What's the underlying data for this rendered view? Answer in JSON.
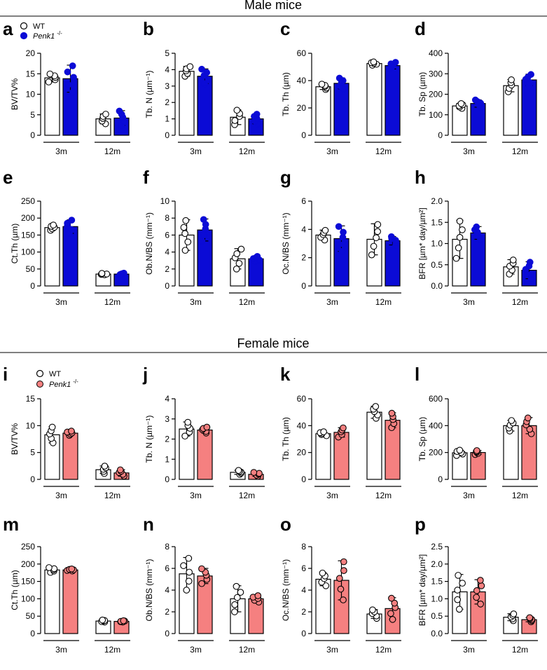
{
  "sections": [
    {
      "title": "Male mice"
    },
    {
      "title": "Female mice"
    }
  ],
  "legends": [
    {
      "wt_label": "WT",
      "ko_label": "Penk1",
      "ko_superscript": "-/-",
      "ko_color": "#0b0bd6"
    },
    {
      "wt_label": "WT",
      "ko_label": "Penk1",
      "ko_superscript": "-/-",
      "ko_color": "#f58080"
    }
  ],
  "group_labels": [
    "3m",
    "12m"
  ],
  "colors": {
    "wt": "#ffffff",
    "male_ko": "#0b0bd6",
    "female_ko": "#f58080",
    "axis": "#000000"
  },
  "chart_data": [
    {
      "letter": "a",
      "type": "bar",
      "ylabel": "BV/TV%",
      "ylim": [
        0,
        20
      ],
      "ticks": [
        0,
        5,
        10,
        15,
        20
      ],
      "group": "male",
      "series": [
        {
          "name": "WT",
          "values": [
            14.0,
            4.0
          ],
          "err": [
            1.0,
            1.2
          ]
        },
        {
          "name": "Penk1 -/-",
          "values": [
            13.8,
            4.2
          ],
          "err": [
            3.3,
            1.8
          ]
        }
      ]
    },
    {
      "letter": "b",
      "type": "bar",
      "ylabel": "Tb. N (µm⁻¹)",
      "ylim": [
        0,
        5
      ],
      "ticks": [
        0,
        1,
        2,
        3,
        4,
        5
      ],
      "group": "male",
      "series": [
        {
          "name": "WT",
          "values": [
            3.9,
            1.1
          ],
          "err": [
            0.3,
            0.45
          ]
        },
        {
          "name": "Penk1 -/-",
          "values": [
            3.6,
            1.0
          ],
          "err": [
            0.45,
            0.3
          ]
        }
      ]
    },
    {
      "letter": "c",
      "type": "bar",
      "ylabel": "Tb. Th (µm)",
      "ylim": [
        0,
        60
      ],
      "ticks": [
        0,
        20,
        40,
        60
      ],
      "group": "male",
      "series": [
        {
          "name": "WT",
          "values": [
            35.5,
            52.5
          ],
          "err": [
            2.0,
            1.2
          ]
        },
        {
          "name": "Penk1 -/-",
          "values": [
            38,
            51
          ],
          "err": [
            4.0,
            2.5
          ]
        }
      ]
    },
    {
      "letter": "d",
      "type": "bar",
      "ylabel": "Tb. Sp (µm)",
      "ylim": [
        0,
        400
      ],
      "ticks": [
        0,
        100,
        200,
        300,
        400
      ],
      "group": "male",
      "series": [
        {
          "name": "WT",
          "values": [
            143,
            242
          ],
          "err": [
            12,
            30
          ]
        },
        {
          "name": "Penk1 -/-",
          "values": [
            155,
            270
          ],
          "err": [
            18,
            28
          ]
        }
      ]
    },
    {
      "letter": "e",
      "type": "bar",
      "ylabel": "Ct.Th (µm)",
      "ylim": [
        0,
        250
      ],
      "ticks": [
        0,
        50,
        100,
        150,
        200,
        250
      ],
      "group": "male",
      "series": [
        {
          "name": "WT",
          "values": [
            172,
            35
          ],
          "err": [
            8,
            2
          ]
        },
        {
          "name": "Penk1 -/-",
          "values": [
            175,
            35
          ],
          "err": [
            20,
            3
          ]
        }
      ]
    },
    {
      "letter": "f",
      "type": "bar",
      "ylabel": "Ob.N/BS (mm⁻¹)",
      "ylim": [
        0,
        10
      ],
      "ticks": [
        0,
        2,
        4,
        6,
        8,
        10
      ],
      "group": "male",
      "series": [
        {
          "name": "WT",
          "values": [
            6.0,
            3.2
          ],
          "err": [
            1.8,
            1.2
          ]
        },
        {
          "name": "Penk1 -/-",
          "values": [
            6.6,
            3.2
          ],
          "err": [
            1.3,
            0.3
          ]
        }
      ]
    },
    {
      "letter": "g",
      "type": "bar",
      "ylabel": "Oc.N/BS (mm⁻¹)",
      "ylim": [
        0,
        6
      ],
      "ticks": [
        0,
        2,
        4,
        6
      ],
      "group": "male",
      "series": [
        {
          "name": "WT",
          "values": [
            3.6,
            3.3
          ],
          "err": [
            0.35,
            1.1
          ]
        },
        {
          "name": "Penk1 -/-",
          "values": [
            3.35,
            3.2
          ],
          "err": [
            0.9,
            0.3
          ]
        }
      ]
    },
    {
      "letter": "h",
      "type": "bar",
      "ylabel": "BFR [µm* day/µm²]",
      "ylim": [
        0,
        2.0
      ],
      "ticks": [
        0,
        0.5,
        1.0,
        1.5,
        2.0
      ],
      "group": "male",
      "series": [
        {
          "name": "WT",
          "values": [
            1.1,
            0.45
          ],
          "err": [
            0.45,
            0.17
          ]
        },
        {
          "name": "Penk1 -/-",
          "values": [
            1.25,
            0.37
          ],
          "err": [
            0.15,
            0.2
          ]
        }
      ]
    },
    {
      "letter": "i",
      "type": "bar",
      "ylabel": "BV/TV%",
      "ylim": [
        0,
        15
      ],
      "ticks": [
        0,
        5,
        10,
        15
      ],
      "group": "female",
      "series": [
        {
          "name": "WT",
          "values": [
            8.3,
            1.8
          ],
          "err": [
            1.5,
            0.7
          ]
        },
        {
          "name": "Penk1 -/-",
          "values": [
            8.6,
            1.2
          ],
          "err": [
            0.4,
            0.6
          ]
        }
      ]
    },
    {
      "letter": "j",
      "type": "bar",
      "ylabel": "Tb. N (µm⁻¹)",
      "ylim": [
        0,
        4
      ],
      "ticks": [
        0,
        1,
        2,
        3,
        4
      ],
      "group": "female",
      "series": [
        {
          "name": "WT",
          "values": [
            2.5,
            0.35
          ],
          "err": [
            0.35,
            0.1
          ]
        },
        {
          "name": "Penk1 -/-",
          "values": [
            2.45,
            0.25
          ],
          "err": [
            0.15,
            0.1
          ]
        }
      ]
    },
    {
      "letter": "k",
      "type": "bar",
      "ylabel": "Tb. Th (µm)",
      "ylim": [
        0,
        60
      ],
      "ticks": [
        0,
        20,
        40,
        60
      ],
      "group": "female",
      "series": [
        {
          "name": "WT",
          "values": [
            34,
            50
          ],
          "err": [
            1.5,
            4.5
          ]
        },
        {
          "name": "Penk1 -/-",
          "values": [
            35,
            44
          ],
          "err": [
            3.5,
            5.5
          ]
        }
      ]
    },
    {
      "letter": "l",
      "type": "bar",
      "ylabel": "Tb. Sp (µm)",
      "ylim": [
        0,
        600
      ],
      "ticks": [
        0,
        200,
        400,
        600
      ],
      "group": "female",
      "series": [
        {
          "name": "WT",
          "values": [
            198,
            400
          ],
          "err": [
            20,
            40
          ]
        },
        {
          "name": "Penk1 -/-",
          "values": [
            200,
            400
          ],
          "err": [
            15,
            60
          ]
        }
      ]
    },
    {
      "letter": "m",
      "type": "bar",
      "ylabel": "Ct.Th (µm)",
      "ylim": [
        0,
        250
      ],
      "ticks": [
        0,
        50,
        100,
        150,
        200,
        250
      ],
      "group": "female",
      "series": [
        {
          "name": "WT",
          "values": [
            183,
            36
          ],
          "err": [
            7,
            3
          ]
        },
        {
          "name": "Penk1 -/-",
          "values": [
            183,
            35
          ],
          "err": [
            3,
            2
          ]
        }
      ]
    },
    {
      "letter": "n",
      "type": "bar",
      "ylabel": "Ob.N/BS (mm⁻¹)",
      "ylim": [
        0,
        8
      ],
      "ticks": [
        0,
        2,
        4,
        6,
        8
      ],
      "group": "female",
      "series": [
        {
          "name": "WT",
          "values": [
            5.5,
            3.2
          ],
          "err": [
            1.5,
            1.2
          ]
        },
        {
          "name": "Penk1 -/-",
          "values": [
            5.3,
            3.2
          ],
          "err": [
            0.7,
            0.3
          ]
        }
      ]
    },
    {
      "letter": "o",
      "type": "bar",
      "ylabel": "Oc.N/BS (mm⁻¹)",
      "ylim": [
        0,
        8
      ],
      "ticks": [
        0,
        2,
        4,
        6,
        8
      ],
      "group": "female",
      "series": [
        {
          "name": "WT",
          "values": [
            5.0,
            1.8
          ],
          "err": [
            0.6,
            0.4
          ]
        },
        {
          "name": "Penk1 -/-",
          "values": [
            4.9,
            2.3
          ],
          "err": [
            1.8,
            1.0
          ]
        }
      ]
    },
    {
      "letter": "p",
      "type": "bar",
      "ylabel": "BFR [µm* day/µm²]",
      "ylim": [
        0,
        2.5
      ],
      "ticks": [
        0,
        0.5,
        1.0,
        1.5,
        2.0,
        2.5
      ],
      "group": "female",
      "series": [
        {
          "name": "WT",
          "values": [
            1.2,
            0.47
          ],
          "err": [
            0.5,
            0.1
          ]
        },
        {
          "name": "Penk1 -/-",
          "values": [
            1.2,
            0.4
          ],
          "err": [
            0.35,
            0.06
          ]
        }
      ]
    }
  ]
}
